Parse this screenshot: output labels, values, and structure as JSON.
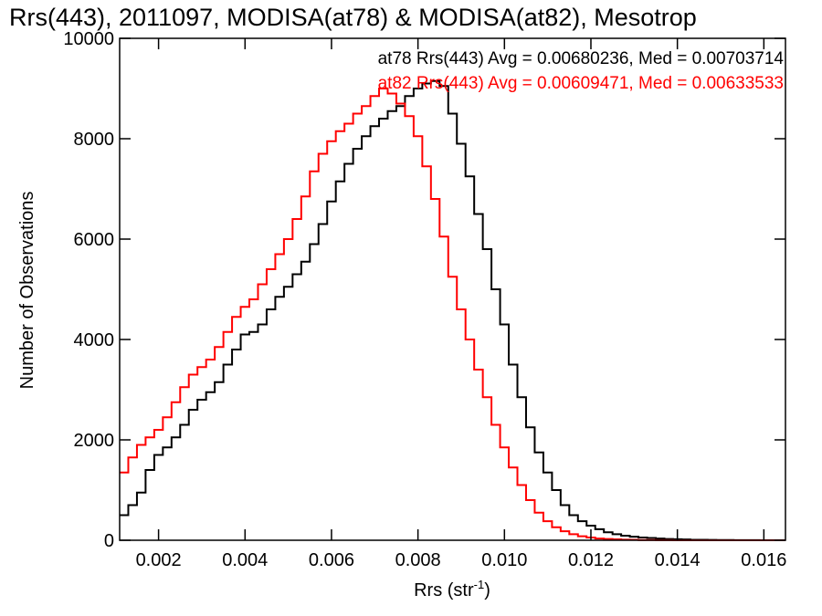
{
  "chart_data": {
    "type": "line",
    "title": "Rrs(443), 2011097, MODISA(at78) & MODISA(at82), Mesotrop",
    "xlabel": "Rrs (str",
    "xlabel_sup": "-1",
    "xlabel_close": ")",
    "ylabel": "Number of Observations",
    "xlim": [
      0.0011,
      0.0165
    ],
    "ylim": [
      0,
      10000
    ],
    "xticks": [
      0.002,
      0.004,
      0.006,
      0.008,
      0.01,
      0.012,
      0.014,
      0.016
    ],
    "xtick_labels": [
      "0.002",
      "0.004",
      "0.006",
      "0.008",
      "0.010",
      "0.012",
      "0.014",
      "0.016"
    ],
    "yticks": [
      0,
      2000,
      4000,
      6000,
      8000,
      10000
    ],
    "ytick_labels": [
      "0",
      "2000",
      "4000",
      "6000",
      "8000",
      "10000"
    ],
    "grid": false,
    "legend_position": "top-right",
    "legend": [
      "at78 Rrs(443) Avg = 0.00680236, Med = 0.00703714",
      "at82 Rrs(443) Avg = 0.00609471, Med = 0.00633533"
    ],
    "colors": {
      "series_1": "#000000",
      "series_2": "#ff0000",
      "axes": "#000000"
    },
    "series": [
      {
        "color": "#000000",
        "points": [
          [
            0.0011,
            500
          ],
          [
            0.0013,
            700
          ],
          [
            0.0015,
            950
          ],
          [
            0.0017,
            1400
          ],
          [
            0.0019,
            1700
          ],
          [
            0.0021,
            1850
          ],
          [
            0.0023,
            2050
          ],
          [
            0.0025,
            2300
          ],
          [
            0.0027,
            2600
          ],
          [
            0.0029,
            2800
          ],
          [
            0.0031,
            2950
          ],
          [
            0.0033,
            3150
          ],
          [
            0.0035,
            3500
          ],
          [
            0.0037,
            3800
          ],
          [
            0.0039,
            4100
          ],
          [
            0.0041,
            4150
          ],
          [
            0.0043,
            4300
          ],
          [
            0.0045,
            4600
          ],
          [
            0.0047,
            4850
          ],
          [
            0.0049,
            5050
          ],
          [
            0.0051,
            5300
          ],
          [
            0.0053,
            5550
          ],
          [
            0.0055,
            5900
          ],
          [
            0.0057,
            6300
          ],
          [
            0.0059,
            6750
          ],
          [
            0.0061,
            7150
          ],
          [
            0.0063,
            7500
          ],
          [
            0.0065,
            7800
          ],
          [
            0.0067,
            8050
          ],
          [
            0.0069,
            8250
          ],
          [
            0.0071,
            8400
          ],
          [
            0.0073,
            8550
          ],
          [
            0.0075,
            8650
          ],
          [
            0.0077,
            8850
          ],
          [
            0.0079,
            9000
          ],
          [
            0.0081,
            9100
          ],
          [
            0.0083,
            9150
          ],
          [
            0.0085,
            9050
          ],
          [
            0.0087,
            8500
          ],
          [
            0.0089,
            7900
          ],
          [
            0.0091,
            7250
          ],
          [
            0.0093,
            6500
          ],
          [
            0.0095,
            5800
          ],
          [
            0.0097,
            5000
          ],
          [
            0.0099,
            4300
          ],
          [
            0.0101,
            3500
          ],
          [
            0.0103,
            2850
          ],
          [
            0.0105,
            2250
          ],
          [
            0.0107,
            1750
          ],
          [
            0.0109,
            1350
          ],
          [
            0.0111,
            1000
          ],
          [
            0.0113,
            700
          ],
          [
            0.0115,
            500
          ],
          [
            0.0117,
            380
          ],
          [
            0.0119,
            290
          ],
          [
            0.0121,
            220
          ],
          [
            0.0123,
            160
          ],
          [
            0.0125,
            120
          ],
          [
            0.0127,
            90
          ],
          [
            0.0129,
            70
          ],
          [
            0.0131,
            55
          ],
          [
            0.0133,
            45
          ],
          [
            0.0135,
            35
          ],
          [
            0.0137,
            25
          ],
          [
            0.0139,
            20
          ],
          [
            0.0141,
            15
          ],
          [
            0.0143,
            10
          ],
          [
            0.0145,
            8
          ],
          [
            0.0147,
            6
          ],
          [
            0.0149,
            5
          ],
          [
            0.0151,
            4
          ],
          [
            0.0153,
            3
          ],
          [
            0.0155,
            2
          ],
          [
            0.0157,
            2
          ],
          [
            0.0159,
            1
          ],
          [
            0.0161,
            1
          ],
          [
            0.0163,
            0
          ],
          [
            0.0165,
            0
          ]
        ]
      },
      {
        "color": "#ff0000",
        "points": [
          [
            0.0011,
            1350
          ],
          [
            0.0013,
            1650
          ],
          [
            0.0015,
            1900
          ],
          [
            0.0017,
            2050
          ],
          [
            0.0019,
            2200
          ],
          [
            0.0021,
            2450
          ],
          [
            0.0023,
            2750
          ],
          [
            0.0025,
            3050
          ],
          [
            0.0027,
            3300
          ],
          [
            0.0029,
            3450
          ],
          [
            0.0031,
            3600
          ],
          [
            0.0033,
            3850
          ],
          [
            0.0035,
            4150
          ],
          [
            0.0037,
            4450
          ],
          [
            0.0039,
            4650
          ],
          [
            0.0041,
            4800
          ],
          [
            0.0043,
            5100
          ],
          [
            0.0045,
            5400
          ],
          [
            0.0047,
            5700
          ],
          [
            0.0049,
            6000
          ],
          [
            0.0051,
            6400
          ],
          [
            0.0053,
            6850
          ],
          [
            0.0055,
            7350
          ],
          [
            0.0057,
            7700
          ],
          [
            0.0059,
            7950
          ],
          [
            0.0061,
            8150
          ],
          [
            0.0063,
            8300
          ],
          [
            0.0065,
            8500
          ],
          [
            0.0067,
            8650
          ],
          [
            0.0069,
            8850
          ],
          [
            0.0071,
            9000
          ],
          [
            0.0073,
            8900
          ],
          [
            0.0075,
            8700
          ],
          [
            0.0077,
            8450
          ],
          [
            0.0079,
            8050
          ],
          [
            0.0081,
            7450
          ],
          [
            0.0083,
            6800
          ],
          [
            0.0085,
            6050
          ],
          [
            0.0087,
            5250
          ],
          [
            0.0089,
            4600
          ],
          [
            0.0091,
            4000
          ],
          [
            0.0093,
            3400
          ],
          [
            0.0095,
            2850
          ],
          [
            0.0097,
            2300
          ],
          [
            0.0099,
            1850
          ],
          [
            0.0101,
            1450
          ],
          [
            0.0103,
            1100
          ],
          [
            0.0105,
            800
          ],
          [
            0.0107,
            550
          ],
          [
            0.0109,
            380
          ],
          [
            0.0111,
            260
          ],
          [
            0.0113,
            180
          ],
          [
            0.0115,
            120
          ],
          [
            0.0117,
            80
          ],
          [
            0.0119,
            55
          ],
          [
            0.0121,
            35
          ],
          [
            0.0123,
            25
          ],
          [
            0.0125,
            18
          ],
          [
            0.0127,
            12
          ],
          [
            0.0129,
            8
          ],
          [
            0.0131,
            5
          ],
          [
            0.0133,
            4
          ],
          [
            0.0135,
            3
          ],
          [
            0.0137,
            2
          ],
          [
            0.0139,
            1
          ],
          [
            0.0141,
            1
          ],
          [
            0.0143,
            0
          ],
          [
            0.0165,
            0
          ]
        ]
      }
    ]
  }
}
